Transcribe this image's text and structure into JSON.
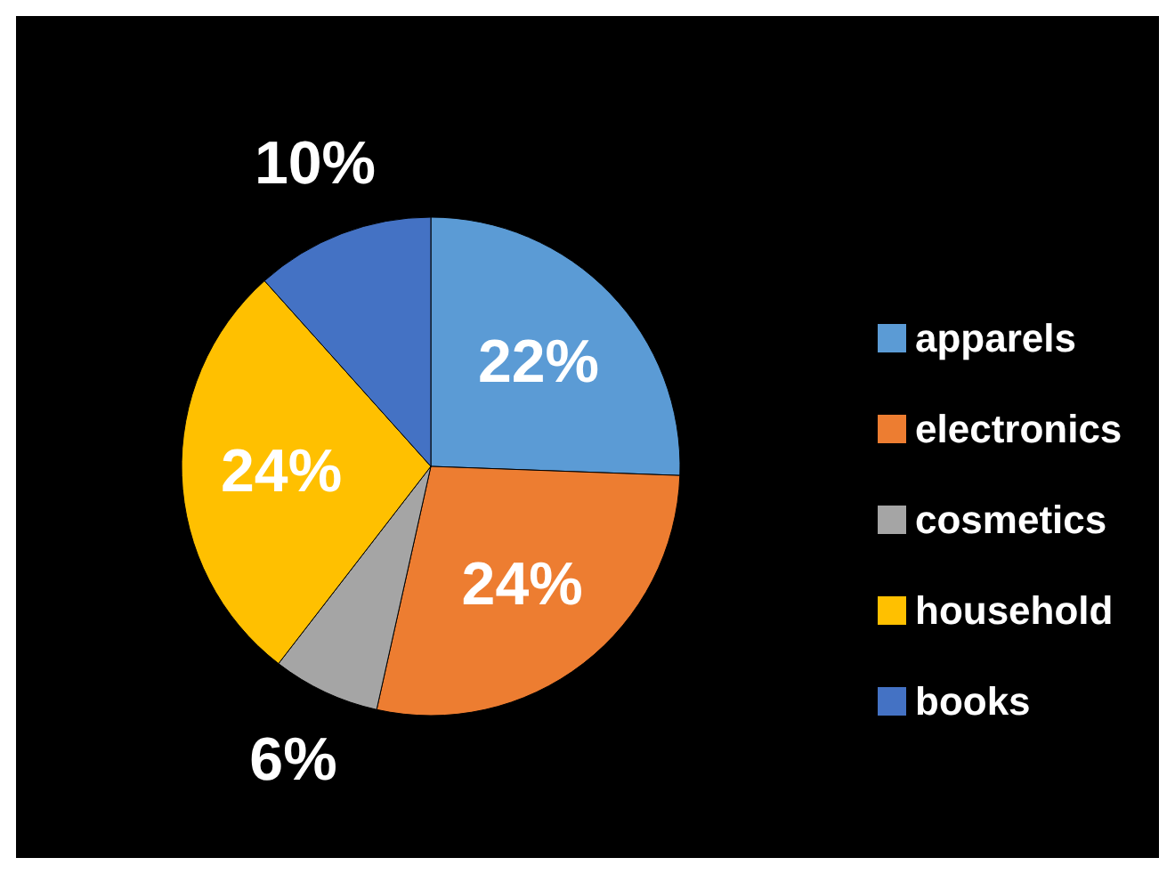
{
  "chart_data": {
    "type": "pie",
    "categories": [
      "apparels",
      "electronics",
      "cosmetics",
      "household",
      "books"
    ],
    "values": [
      22,
      24,
      6,
      24,
      10
    ],
    "colors": [
      "#5b9bd5",
      "#ed7d31",
      "#a5a5a5",
      "#ffc000",
      "#4472c4"
    ],
    "value_labels": [
      "22%",
      "24%",
      "6%",
      "24%",
      "10%"
    ],
    "legend": "right"
  }
}
